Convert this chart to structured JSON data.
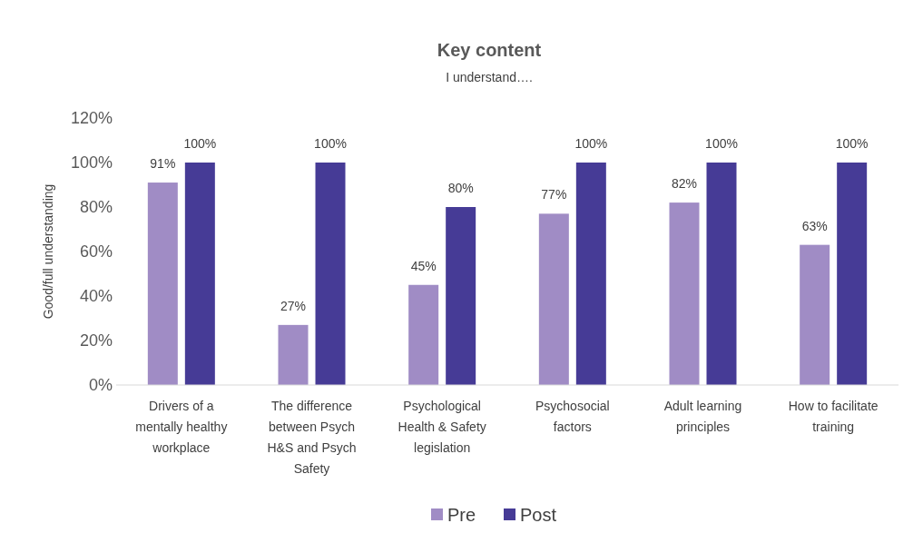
{
  "chart_data": {
    "type": "bar",
    "title": "Key content",
    "subtitle": "I understand….",
    "ylabel": "Good/full understanding",
    "categories": [
      "Drivers of a mentally healthy workplace",
      "The difference between Psych H&S and Psych Safety",
      "Psychological Health & Safety legislation",
      "Psychosocial factors",
      "Adult learning principles",
      "How to facilitate training"
    ],
    "series": [
      {
        "name": "Pre",
        "color": "#a08cc5",
        "values": [
          91,
          27,
          45,
          77,
          82,
          63
        ],
        "value_labels": [
          "91%",
          "27%",
          "45%",
          "77%",
          "82%",
          "63%"
        ]
      },
      {
        "name": "Post",
        "color": "#463b96",
        "values": [
          100,
          100,
          80,
          100,
          100,
          100
        ],
        "value_labels": [
          "100%",
          "100%",
          "80%",
          "100%",
          "100%",
          "100%"
        ]
      }
    ],
    "ylim": [
      0,
      120
    ],
    "yticks": [
      {
        "value": 0,
        "label": "0%"
      },
      {
        "value": 20,
        "label": "20%"
      },
      {
        "value": 40,
        "label": "40%"
      },
      {
        "value": 60,
        "label": "60%"
      },
      {
        "value": 80,
        "label": "80%"
      },
      {
        "value": 100,
        "label": "100%"
      },
      {
        "value": 120,
        "label": "120%"
      }
    ],
    "grid": false,
    "legend": "bottom"
  }
}
